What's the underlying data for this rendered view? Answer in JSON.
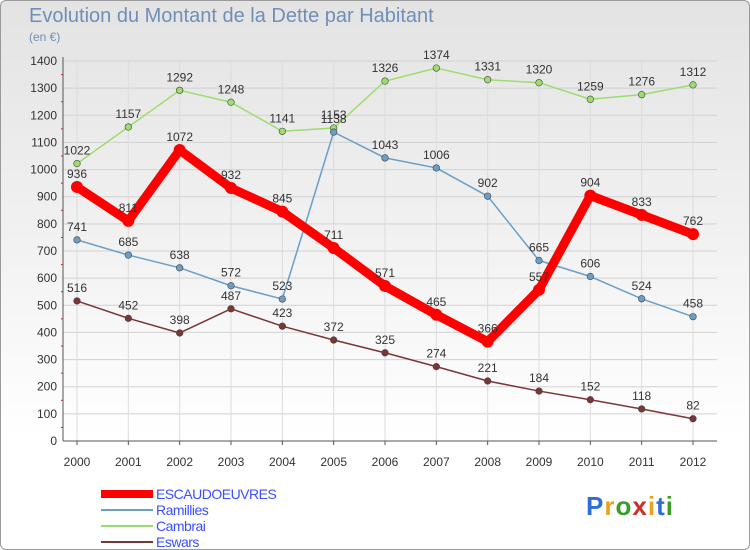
{
  "title": "Evolution du Montant de la Dette par Habitant",
  "subtitle": "(en €)",
  "logo": {
    "text": "Proxiti",
    "letter_colors": [
      "#2a6fd6",
      "#e8a21b",
      "#3a9c2a",
      "#cf2c2c",
      "#e8a21b",
      "#2a6fd6",
      "#3a9c2a"
    ]
  },
  "chart_data": {
    "type": "line",
    "x": [
      "2000",
      "2001",
      "2002",
      "2003",
      "2004",
      "2005",
      "2006",
      "2007",
      "2008",
      "2009",
      "2010",
      "2011",
      "2012"
    ],
    "ylim": [
      0,
      1400
    ],
    "yticks": [
      "0",
      "100",
      "200",
      "300",
      "400",
      "500",
      "600",
      "700",
      "800",
      "900",
      "1000",
      "1100",
      "1200",
      "1300",
      "1400"
    ],
    "grid": true,
    "legend_position": "bottom-left",
    "series": [
      {
        "name": "ESCAUDOEUVRES",
        "color": "#ff0000",
        "values": [
          936,
          811,
          1072,
          932,
          845,
          711,
          571,
          465,
          366,
          557,
          904,
          833,
          762
        ],
        "labels": [
          "936",
          "811",
          "1072",
          "932",
          "845",
          "711",
          "571",
          "465",
          "366",
          "557",
          "904",
          "833",
          "762"
        ]
      },
      {
        "name": "Ramillies",
        "color": "#6a9ec6",
        "values": [
          741,
          685,
          638,
          572,
          523,
          1138,
          1043,
          1006,
          902,
          665,
          606,
          524,
          458
        ],
        "labels": [
          "741",
          "685",
          "638",
          "572",
          "523",
          "1138",
          "1043",
          "1006",
          "902",
          "665",
          "606",
          "524",
          "458"
        ]
      },
      {
        "name": "Cambrai",
        "color": "#9ddc6e",
        "values": [
          1022,
          1157,
          1292,
          1248,
          1141,
          1153,
          1326,
          1374,
          1331,
          1320,
          1259,
          1276,
          1312
        ],
        "labels": [
          "1022",
          "1157",
          "1292",
          "1248",
          "1141",
          "1153",
          "1326",
          "1374",
          "1331",
          "1320",
          "1259",
          "1276",
          "1312"
        ]
      },
      {
        "name": "Eswars",
        "color": "#7a3535",
        "values": [
          516,
          452,
          398,
          487,
          423,
          372,
          325,
          274,
          221,
          184,
          152,
          118,
          82
        ],
        "labels": [
          "516",
          "452",
          "398",
          "487",
          "423",
          "372",
          "325",
          "274",
          "221",
          "184",
          "152",
          "118",
          "82"
        ]
      }
    ]
  }
}
